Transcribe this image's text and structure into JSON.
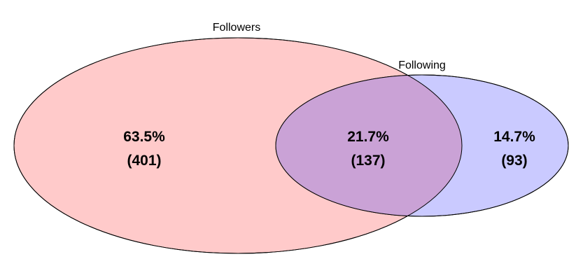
{
  "chart_data": {
    "type": "venn",
    "sets": [
      {
        "name": "Followers",
        "fill": "#ffcaca",
        "stroke": "#000000"
      },
      {
        "name": "Following",
        "fill": "#cacaff",
        "stroke": "#000000"
      }
    ],
    "overlap_fill": "#caa2d6",
    "regions": [
      {
        "id": "followers_only",
        "percent": "63.5%",
        "count": "(401)",
        "value": 401
      },
      {
        "id": "both",
        "percent": "21.7%",
        "count": "(137)",
        "value": 137
      },
      {
        "id": "following_only",
        "percent": "14.7%",
        "count": "(93)",
        "value": 93
      }
    ]
  }
}
